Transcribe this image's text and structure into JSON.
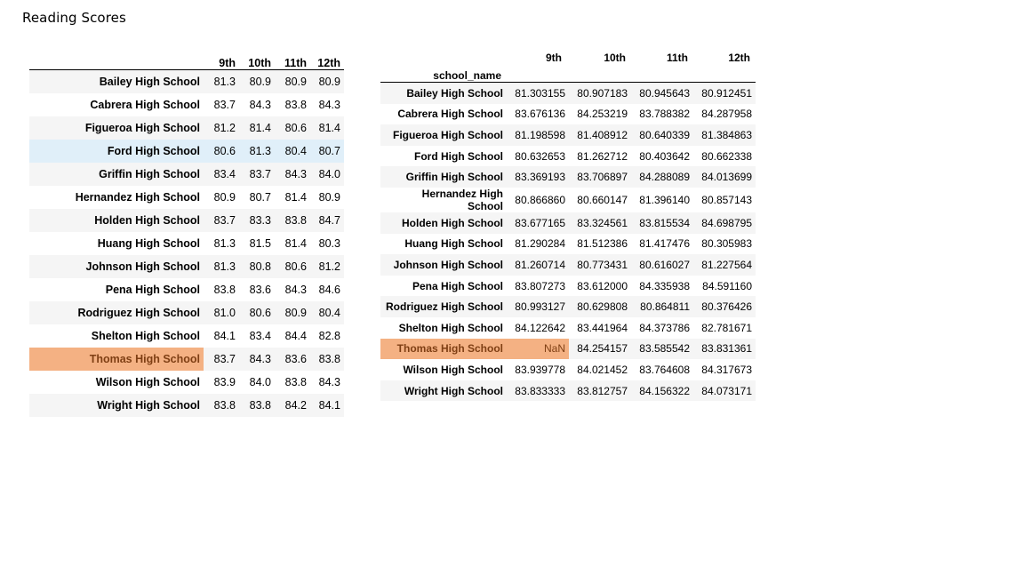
{
  "title": "Reading Scores",
  "colors": {
    "stripe": "#f5f5f5",
    "highlight_blue": "#e0eff9",
    "highlight_orange": "#f4b183"
  },
  "left_table": {
    "columns": [
      "9th",
      "10th",
      "11th",
      "12th"
    ],
    "rows": [
      {
        "school": "Bailey High School",
        "values": [
          "81.3",
          "80.9",
          "80.9",
          "80.9"
        ]
      },
      {
        "school": "Cabrera High School",
        "values": [
          "83.7",
          "84.3",
          "83.8",
          "84.3"
        ]
      },
      {
        "school": "Figueroa High School",
        "values": [
          "81.2",
          "81.4",
          "80.6",
          "81.4"
        ]
      },
      {
        "school": "Ford High School",
        "values": [
          "80.6",
          "81.3",
          "80.4",
          "80.7"
        ]
      },
      {
        "school": "Griffin High School",
        "values": [
          "83.4",
          "83.7",
          "84.3",
          "84.0"
        ]
      },
      {
        "school": "Hernandez High School",
        "values": [
          "80.9",
          "80.7",
          "81.4",
          "80.9"
        ]
      },
      {
        "school": "Holden High School",
        "values": [
          "83.7",
          "83.3",
          "83.8",
          "84.7"
        ]
      },
      {
        "school": "Huang High School",
        "values": [
          "81.3",
          "81.5",
          "81.4",
          "80.3"
        ]
      },
      {
        "school": "Johnson High School",
        "values": [
          "81.3",
          "80.8",
          "80.6",
          "81.2"
        ]
      },
      {
        "school": "Pena High School",
        "values": [
          "83.8",
          "83.6",
          "84.3",
          "84.6"
        ]
      },
      {
        "school": "Rodriguez High School",
        "values": [
          "81.0",
          "80.6",
          "80.9",
          "80.4"
        ]
      },
      {
        "school": "Shelton High School",
        "values": [
          "84.1",
          "83.4",
          "84.4",
          "82.8"
        ]
      },
      {
        "school": "Thomas High School",
        "values": [
          "83.7",
          "84.3",
          "83.6",
          "83.8"
        ]
      },
      {
        "school": "Wilson High School",
        "values": [
          "83.9",
          "84.0",
          "83.8",
          "84.3"
        ]
      },
      {
        "school": "Wright High School",
        "values": [
          "83.8",
          "83.8",
          "84.2",
          "84.1"
        ]
      }
    ]
  },
  "right_table": {
    "columns": [
      "9th",
      "10th",
      "11th",
      "12th"
    ],
    "index_name": "school_name",
    "rows": [
      {
        "school": "Bailey High School",
        "values": [
          "81.303155",
          "80.907183",
          "80.945643",
          "80.912451"
        ]
      },
      {
        "school": "Cabrera High School",
        "values": [
          "83.676136",
          "84.253219",
          "83.788382",
          "84.287958"
        ]
      },
      {
        "school": "Figueroa High School",
        "values": [
          "81.198598",
          "81.408912",
          "80.640339",
          "81.384863"
        ]
      },
      {
        "school": "Ford High School",
        "values": [
          "80.632653",
          "81.262712",
          "80.403642",
          "80.662338"
        ]
      },
      {
        "school": "Griffin High School",
        "values": [
          "83.369193",
          "83.706897",
          "84.288089",
          "84.013699"
        ]
      },
      {
        "school": "Hernandez High School",
        "values": [
          "80.866860",
          "80.660147",
          "81.396140",
          "80.857143"
        ]
      },
      {
        "school": "Holden High School",
        "values": [
          "83.677165",
          "83.324561",
          "83.815534",
          "84.698795"
        ]
      },
      {
        "school": "Huang High School",
        "values": [
          "81.290284",
          "81.512386",
          "81.417476",
          "80.305983"
        ]
      },
      {
        "school": "Johnson High School",
        "values": [
          "81.260714",
          "80.773431",
          "80.616027",
          "81.227564"
        ]
      },
      {
        "school": "Pena High School",
        "values": [
          "83.807273",
          "83.612000",
          "84.335938",
          "84.591160"
        ]
      },
      {
        "school": "Rodriguez High School",
        "values": [
          "80.993127",
          "80.629808",
          "80.864811",
          "80.376426"
        ]
      },
      {
        "school": "Shelton High School",
        "values": [
          "84.122642",
          "83.441964",
          "84.373786",
          "82.781671"
        ]
      },
      {
        "school": "Thomas High School",
        "values": [
          "NaN",
          "84.254157",
          "83.585542",
          "83.831361"
        ]
      },
      {
        "school": "Wilson High School",
        "values": [
          "83.939778",
          "84.021452",
          "83.764608",
          "84.317673"
        ]
      },
      {
        "school": "Wright High School",
        "values": [
          "83.833333",
          "83.812757",
          "84.156322",
          "84.073171"
        ]
      }
    ]
  }
}
